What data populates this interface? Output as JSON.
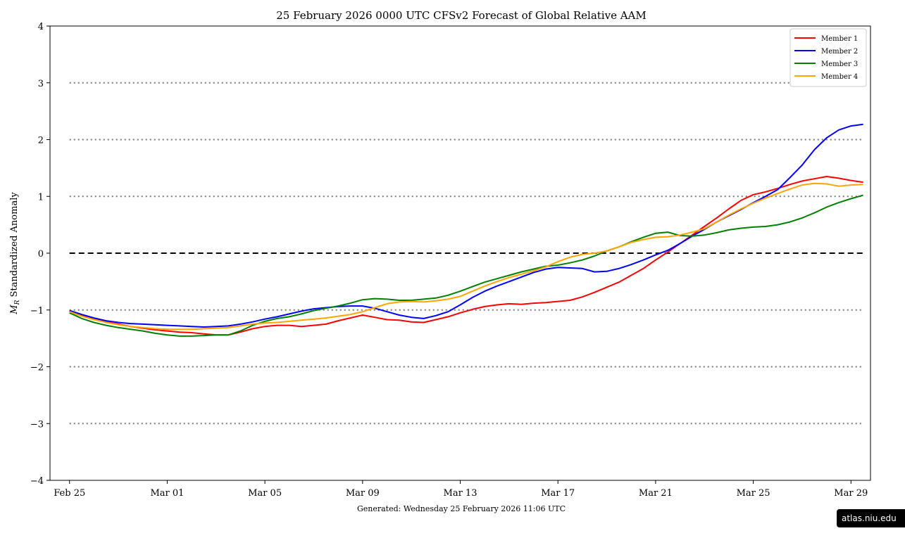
{
  "chart_data": {
    "type": "line",
    "title": "25  February  2026 0000 UTC   CFSv2 Forecast of Global Relative AAM",
    "ylabel_main": "M",
    "ylabel_sub": "R",
    "ylabel_rest": " Standardized Anomaly",
    "footer": "Generated: Wednesday  25  February  2026  11:06 UTC",
    "xlim": [
      -0.8,
      32.8
    ],
    "ylim": [
      -4,
      4
    ],
    "xticks": [
      {
        "x": 0,
        "label": "Feb 25"
      },
      {
        "x": 4,
        "label": "Mar 01"
      },
      {
        "x": 8,
        "label": "Mar 05"
      },
      {
        "x": 12,
        "label": "Mar 09"
      },
      {
        "x": 16,
        "label": "Mar 13"
      },
      {
        "x": 20,
        "label": "Mar 17"
      },
      {
        "x": 24,
        "label": "Mar 21"
      },
      {
        "x": 28,
        "label": "Mar 25"
      },
      {
        "x": 32,
        "label": "Mar 29"
      }
    ],
    "yticks": [
      {
        "y": 4,
        "label": "4"
      },
      {
        "y": 3,
        "label": "3"
      },
      {
        "y": 2,
        "label": "2"
      },
      {
        "y": 1,
        "label": "1"
      },
      {
        "y": 0,
        "label": "0"
      },
      {
        "y": -1,
        "label": "−1"
      },
      {
        "y": -2,
        "label": "−2"
      },
      {
        "y": -3,
        "label": "−3"
      },
      {
        "y": -4,
        "label": "−4"
      }
    ],
    "dotted_levels": [
      3,
      2,
      1,
      -1,
      -2,
      -3
    ],
    "dashed_level": 0,
    "legend_position": "top-right",
    "series": [
      {
        "name": "Member 1",
        "color": "#ff0000",
        "points": [
          [
            0,
            -1.02
          ],
          [
            0.5,
            -1.1
          ],
          [
            1,
            -1.16
          ],
          [
            1.5,
            -1.21
          ],
          [
            2,
            -1.25
          ],
          [
            2.5,
            -1.29
          ],
          [
            3,
            -1.32
          ],
          [
            3.5,
            -1.35
          ],
          [
            4,
            -1.37
          ],
          [
            4.5,
            -1.39
          ],
          [
            5,
            -1.4
          ],
          [
            5.5,
            -1.42
          ],
          [
            6,
            -1.44
          ],
          [
            6.5,
            -1.44
          ],
          [
            7,
            -1.39
          ],
          [
            7.5,
            -1.33
          ],
          [
            8,
            -1.29
          ],
          [
            8.5,
            -1.27
          ],
          [
            9,
            -1.27
          ],
          [
            9.5,
            -1.29
          ],
          [
            10,
            -1.27
          ],
          [
            10.5,
            -1.25
          ],
          [
            11,
            -1.19
          ],
          [
            11.5,
            -1.14
          ],
          [
            12,
            -1.09
          ],
          [
            12.5,
            -1.13
          ],
          [
            13,
            -1.17
          ],
          [
            13.5,
            -1.18
          ],
          [
            14,
            -1.21
          ],
          [
            14.5,
            -1.22
          ],
          [
            15,
            -1.17
          ],
          [
            15.5,
            -1.12
          ],
          [
            16,
            -1.05
          ],
          [
            16.5,
            -0.99
          ],
          [
            17,
            -0.94
          ],
          [
            17.5,
            -0.91
          ],
          [
            18,
            -0.89
          ],
          [
            18.5,
            -0.9
          ],
          [
            19,
            -0.88
          ],
          [
            19.5,
            -0.87
          ],
          [
            20,
            -0.85
          ],
          [
            20.5,
            -0.83
          ],
          [
            21,
            -0.77
          ],
          [
            21.5,
            -0.69
          ],
          [
            22,
            -0.6
          ],
          [
            22.5,
            -0.51
          ],
          [
            23,
            -0.39
          ],
          [
            23.5,
            -0.27
          ],
          [
            24,
            -0.12
          ],
          [
            24.5,
            0.02
          ],
          [
            25,
            0.17
          ],
          [
            25.5,
            0.32
          ],
          [
            26,
            0.47
          ],
          [
            26.5,
            0.62
          ],
          [
            27,
            0.78
          ],
          [
            27.5,
            0.93
          ],
          [
            28,
            1.03
          ],
          [
            28.5,
            1.08
          ],
          [
            29,
            1.14
          ],
          [
            29.5,
            1.21
          ],
          [
            30,
            1.27
          ],
          [
            30.5,
            1.31
          ],
          [
            31,
            1.35
          ],
          [
            31.5,
            1.32
          ],
          [
            32,
            1.28
          ],
          [
            32.5,
            1.25
          ]
        ]
      },
      {
        "name": "Member 2",
        "color": "#0000ff",
        "points": [
          [
            0,
            -1.01
          ],
          [
            0.5,
            -1.08
          ],
          [
            1,
            -1.14
          ],
          [
            1.5,
            -1.19
          ],
          [
            2,
            -1.22
          ],
          [
            2.5,
            -1.24
          ],
          [
            3,
            -1.25
          ],
          [
            3.5,
            -1.26
          ],
          [
            4,
            -1.27
          ],
          [
            4.5,
            -1.28
          ],
          [
            5,
            -1.29
          ],
          [
            5.5,
            -1.3
          ],
          [
            6,
            -1.29
          ],
          [
            6.5,
            -1.28
          ],
          [
            7,
            -1.25
          ],
          [
            7.5,
            -1.21
          ],
          [
            8,
            -1.16
          ],
          [
            8.5,
            -1.12
          ],
          [
            9,
            -1.07
          ],
          [
            9.5,
            -1.02
          ],
          [
            10,
            -0.98
          ],
          [
            10.5,
            -0.96
          ],
          [
            11,
            -0.94
          ],
          [
            11.5,
            -0.93
          ],
          [
            12,
            -0.93
          ],
          [
            12.5,
            -0.97
          ],
          [
            13,
            -1.03
          ],
          [
            13.5,
            -1.09
          ],
          [
            14,
            -1.13
          ],
          [
            14.5,
            -1.15
          ],
          [
            15,
            -1.1
          ],
          [
            15.5,
            -1.03
          ],
          [
            16,
            -0.91
          ],
          [
            16.5,
            -0.78
          ],
          [
            17,
            -0.67
          ],
          [
            17.5,
            -0.58
          ],
          [
            18,
            -0.5
          ],
          [
            18.5,
            -0.42
          ],
          [
            19,
            -0.34
          ],
          [
            19.5,
            -0.28
          ],
          [
            20,
            -0.25
          ],
          [
            20.5,
            -0.26
          ],
          [
            21,
            -0.27
          ],
          [
            21.5,
            -0.33
          ],
          [
            22,
            -0.32
          ],
          [
            22.5,
            -0.27
          ],
          [
            23,
            -0.2
          ],
          [
            23.5,
            -0.12
          ],
          [
            24,
            -0.03
          ],
          [
            24.5,
            0.05
          ],
          [
            25,
            0.17
          ],
          [
            25.5,
            0.3
          ],
          [
            26,
            0.42
          ],
          [
            26.5,
            0.55
          ],
          [
            27,
            0.66
          ],
          [
            27.5,
            0.77
          ],
          [
            28,
            0.89
          ],
          [
            28.5,
            1.0
          ],
          [
            29,
            1.12
          ],
          [
            29.5,
            1.33
          ],
          [
            30,
            1.55
          ],
          [
            30.5,
            1.82
          ],
          [
            31,
            2.03
          ],
          [
            31.5,
            2.17
          ],
          [
            32,
            2.24
          ],
          [
            32.5,
            2.27
          ]
        ]
      },
      {
        "name": "Member 3",
        "color": "#008000",
        "points": [
          [
            0,
            -1.05
          ],
          [
            0.5,
            -1.15
          ],
          [
            1,
            -1.22
          ],
          [
            1.5,
            -1.27
          ],
          [
            2,
            -1.31
          ],
          [
            2.5,
            -1.34
          ],
          [
            3,
            -1.37
          ],
          [
            3.5,
            -1.41
          ],
          [
            4,
            -1.44
          ],
          [
            4.5,
            -1.46
          ],
          [
            5,
            -1.46
          ],
          [
            5.5,
            -1.45
          ],
          [
            6,
            -1.44
          ],
          [
            6.5,
            -1.44
          ],
          [
            7,
            -1.37
          ],
          [
            7.5,
            -1.27
          ],
          [
            8,
            -1.2
          ],
          [
            8.5,
            -1.15
          ],
          [
            9,
            -1.12
          ],
          [
            9.5,
            -1.07
          ],
          [
            10,
            -1.01
          ],
          [
            10.5,
            -0.97
          ],
          [
            11,
            -0.93
          ],
          [
            11.5,
            -0.88
          ],
          [
            12,
            -0.82
          ],
          [
            12.5,
            -0.8
          ],
          [
            13,
            -0.81
          ],
          [
            13.5,
            -0.83
          ],
          [
            14,
            -0.83
          ],
          [
            14.5,
            -0.81
          ],
          [
            15,
            -0.79
          ],
          [
            15.5,
            -0.74
          ],
          [
            16,
            -0.67
          ],
          [
            16.5,
            -0.59
          ],
          [
            17,
            -0.51
          ],
          [
            17.5,
            -0.45
          ],
          [
            18,
            -0.39
          ],
          [
            18.5,
            -0.33
          ],
          [
            19,
            -0.28
          ],
          [
            19.5,
            -0.23
          ],
          [
            20,
            -0.21
          ],
          [
            20.5,
            -0.17
          ],
          [
            21,
            -0.12
          ],
          [
            21.5,
            -0.05
          ],
          [
            22,
            0.04
          ],
          [
            22.5,
            0.11
          ],
          [
            23,
            0.2
          ],
          [
            23.5,
            0.28
          ],
          [
            24,
            0.35
          ],
          [
            24.5,
            0.37
          ],
          [
            25,
            0.31
          ],
          [
            25.5,
            0.3
          ],
          [
            26,
            0.32
          ],
          [
            26.5,
            0.36
          ],
          [
            27,
            0.41
          ],
          [
            27.5,
            0.44
          ],
          [
            28,
            0.46
          ],
          [
            28.5,
            0.47
          ],
          [
            29,
            0.5
          ],
          [
            29.5,
            0.55
          ],
          [
            30,
            0.62
          ],
          [
            30.5,
            0.71
          ],
          [
            31,
            0.81
          ],
          [
            31.5,
            0.89
          ],
          [
            32,
            0.96
          ],
          [
            32.5,
            1.02
          ]
        ]
      },
      {
        "name": "Member 4",
        "color": "#ffa500",
        "points": [
          [
            0,
            -1.03
          ],
          [
            0.5,
            -1.11
          ],
          [
            1,
            -1.17
          ],
          [
            1.5,
            -1.22
          ],
          [
            2,
            -1.26
          ],
          [
            2.5,
            -1.29
          ],
          [
            3,
            -1.31
          ],
          [
            3.5,
            -1.33
          ],
          [
            4,
            -1.34
          ],
          [
            4.5,
            -1.34
          ],
          [
            5,
            -1.34
          ],
          [
            5.5,
            -1.33
          ],
          [
            6,
            -1.32
          ],
          [
            6.5,
            -1.31
          ],
          [
            7,
            -1.28
          ],
          [
            7.5,
            -1.25
          ],
          [
            8,
            -1.23
          ],
          [
            8.5,
            -1.22
          ],
          [
            9,
            -1.2
          ],
          [
            9.5,
            -1.18
          ],
          [
            10,
            -1.16
          ],
          [
            10.5,
            -1.14
          ],
          [
            11,
            -1.11
          ],
          [
            11.5,
            -1.08
          ],
          [
            12,
            -1.03
          ],
          [
            12.5,
            -0.96
          ],
          [
            13,
            -0.89
          ],
          [
            13.5,
            -0.86
          ],
          [
            14,
            -0.85
          ],
          [
            14.5,
            -0.86
          ],
          [
            15,
            -0.84
          ],
          [
            15.5,
            -0.81
          ],
          [
            16,
            -0.76
          ],
          [
            16.5,
            -0.67
          ],
          [
            17,
            -0.58
          ],
          [
            17.5,
            -0.5
          ],
          [
            18,
            -0.43
          ],
          [
            18.5,
            -0.37
          ],
          [
            19,
            -0.31
          ],
          [
            19.5,
            -0.24
          ],
          [
            20,
            -0.15
          ],
          [
            20.5,
            -0.07
          ],
          [
            21,
            -0.02
          ],
          [
            21.5,
            0.0
          ],
          [
            22,
            0.04
          ],
          [
            22.5,
            0.11
          ],
          [
            23,
            0.19
          ],
          [
            23.5,
            0.24
          ],
          [
            24,
            0.28
          ],
          [
            24.5,
            0.29
          ],
          [
            25,
            0.32
          ],
          [
            25.5,
            0.37
          ],
          [
            26,
            0.43
          ],
          [
            26.5,
            0.55
          ],
          [
            27,
            0.67
          ],
          [
            27.5,
            0.78
          ],
          [
            28,
            0.88
          ],
          [
            28.5,
            0.97
          ],
          [
            29,
            1.05
          ],
          [
            29.5,
            1.13
          ],
          [
            30,
            1.2
          ],
          [
            30.5,
            1.23
          ],
          [
            31,
            1.22
          ],
          [
            31.5,
            1.18
          ],
          [
            32,
            1.2
          ],
          [
            32.5,
            1.21
          ]
        ]
      }
    ]
  },
  "watermark": "atlas.niu.edu"
}
